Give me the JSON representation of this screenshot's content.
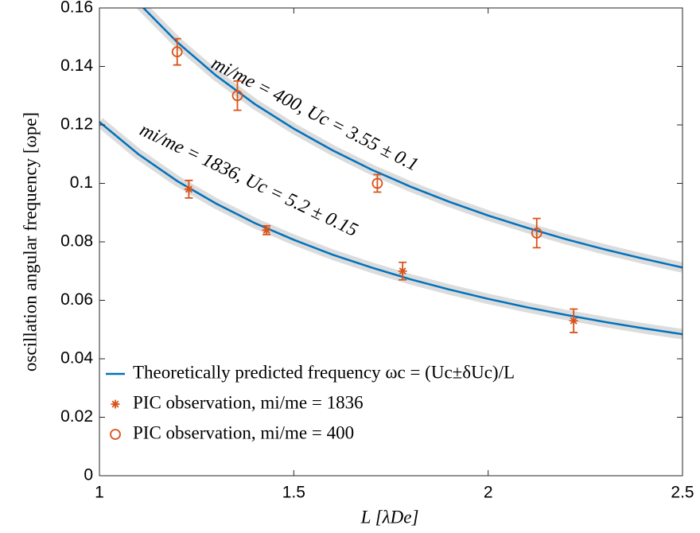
{
  "chart_data": {
    "type": "line",
    "x_label": "L [λDe]",
    "y_label": "oscillation angular frequency [ωpe]",
    "xlim": [
      1,
      2.5
    ],
    "ylim": [
      0,
      0.16
    ],
    "xticks": [
      1,
      1.5,
      2,
      2.5
    ],
    "yticks": [
      0,
      0.02,
      0.04,
      0.06,
      0.08,
      0.1,
      0.12,
      0.14,
      0.16
    ],
    "series": [
      {
        "name": "Theoretically predicted frequency ωc = (Uc±δUc)/L",
        "color": "#0072bd",
        "type": "line",
        "curves": [
          {
            "x": [
              1.0,
              1.1,
              1.2,
              1.3,
              1.4,
              1.5,
              1.6,
              1.7,
              1.8,
              1.9,
              2.0,
              2.1,
              2.2,
              2.3,
              2.4,
              2.5
            ],
            "values": [
              0.178,
              0.1618,
              0.1483,
              0.1369,
              0.1271,
              0.1187,
              0.1113,
              0.1047,
              0.0989,
              0.0937,
              0.089,
              0.0848,
              0.0809,
              0.0774,
              0.0742,
              0.0712
            ]
          },
          {
            "x": [
              1.0,
              1.1,
              1.2,
              1.3,
              1.4,
              1.5,
              1.6,
              1.7,
              1.8,
              1.9,
              2.0,
              2.1,
              2.2,
              2.3,
              2.4,
              2.5
            ],
            "values": [
              0.121,
              0.11,
              0.1008,
              0.0931,
              0.0864,
              0.0807,
              0.0756,
              0.0712,
              0.0672,
              0.0637,
              0.0605,
              0.0576,
              0.055,
              0.0526,
              0.0504,
              0.0484
            ]
          }
        ]
      },
      {
        "name": "PIC observation, mi/me = 1836",
        "color": "#d95319",
        "type": "scatter",
        "marker": "star",
        "x": [
          1.23,
          1.43,
          1.78,
          2.22
        ],
        "values": [
          0.098,
          0.084,
          0.07,
          0.053
        ],
        "errors": [
          0.003,
          0.0015,
          0.003,
          0.004
        ]
      },
      {
        "name": "PIC observation, mi/me = 400",
        "color": "#d95319",
        "type": "scatter",
        "marker": "circle",
        "x": [
          1.2,
          1.355,
          1.715,
          2.125
        ],
        "values": [
          0.145,
          0.13,
          0.1,
          0.083
        ],
        "errors": [
          0.0045,
          0.005,
          0.003,
          0.005
        ]
      }
    ],
    "annotations": [
      "mi/me = 400, Uc = 3.55 ± 0.1",
      "mi/me = 1836, Uc = 5.2 ± 0.15"
    ]
  }
}
